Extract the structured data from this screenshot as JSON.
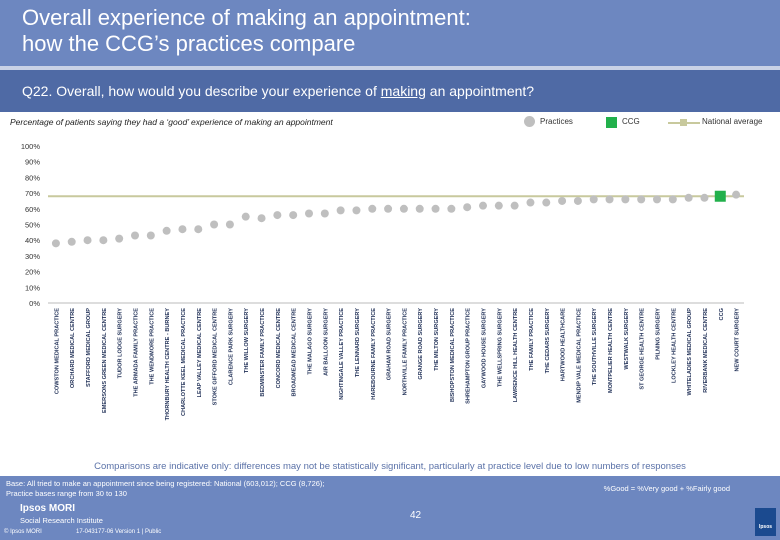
{
  "header": {
    "title_line1": "Overall experience of making an appointment:",
    "title_line2": "how the CCG’s practices compare"
  },
  "question": {
    "prefix": "Q22. Overall, how would you describe your experience of ",
    "underlined": "making",
    "suffix": " an appointment?"
  },
  "subtitle": "Percentage of patients saying they had a ‘good’ experience of making an appointment",
  "legend": {
    "practices": "Practices",
    "ccg": "CCG",
    "national": "National average"
  },
  "chart_data": {
    "type": "scatter",
    "title": "Overall experience of making an appointment",
    "ylabel": "",
    "xlabel": "",
    "ylim": [
      0,
      100
    ],
    "yticks": [
      "0%",
      "10%",
      "20%",
      "30%",
      "40%",
      "50%",
      "60%",
      "70%",
      "80%",
      "90%",
      "100%"
    ],
    "yticks_values": [
      0,
      10,
      20,
      30,
      40,
      50,
      60,
      70,
      80,
      90,
      100
    ],
    "categories": [
      "COWSTON MEDICAL PRACTICE",
      "ORCHARD MEDICAL CENTRE",
      "STAFFORD MEDICAL GROUP",
      "EMERSONS GREEN MEDICAL CENTRE",
      "TUDOR LODGE SURGERY",
      "THE ARMADA FAMILY PRACTICE",
      "THE WENDMORE PRACTICE",
      "THORNBURY HEALTH CENTRE - BURNEY",
      "CHARLOTTE KEEL MEDICAL PRACTICE",
      "LEAP VALLEY MEDICAL CENTRE",
      "STOKE GIFFORD MEDICAL CENTRE",
      "CLARENCE PARK SURGERY",
      "THE WILLOW SURGERY",
      "BEDMINSTER FAMILY PRACTICE",
      "CONCORD MEDICAL CENTRE",
      "BROADMEAD MEDICAL CENTRE",
      "THE MALAGO SURGERY",
      "AIR BALLOON SURGERY",
      "NIGHTINGALE VALLEY PRACTICE",
      "THE LENNARD SURGERY",
      "HAREBOURNE FAMILY PRACTICE",
      "GRAHAM ROAD SURGERY",
      "NORTHVILLE FAMILY PRACTICE",
      "GRANGE ROAD SURGERY",
      "THE MILTON SURGERY",
      "BISHOPSTON MEDICAL PRACTICE",
      "SHREHAMPTON GROUP PRACTICE",
      "GAYWOOD HOUSE SURGERY",
      "THE WELLSPRING SURGERY",
      "LAWRENCE HILL HEALTH CENTRE",
      "THE FAMILY PRACTICE",
      "THE CEDARS SURGERY",
      "HARTWOOD HEALTHCARE",
      "MENDIP VALE MEDICAL PRACTICE",
      "THE SOUTHVILLE SURGERY",
      "MONTPELIER HEALTH CENTRE",
      "WESTWALK SURGERY",
      "ST GEORGE HEALTH CENTRE",
      "PILNING SURGERY",
      "LOCKLEY HEALTH CENTRE",
      "WHITELADIES MEDICAL GROUP",
      "RIVERBANK MEDICAL CENTRE",
      "CCG",
      "NEW COURT SURGERY"
    ],
    "values": [
      38,
      39,
      40,
      40,
      41,
      43,
      43,
      46,
      47,
      47,
      50,
      50,
      55,
      54,
      56,
      56,
      57,
      57,
      59,
      59,
      60,
      60,
      60,
      60,
      60,
      60,
      61,
      62,
      62,
      62,
      64,
      64,
      65,
      65,
      66,
      66,
      66,
      66,
      66,
      66,
      67,
      67,
      68,
      69
    ],
    "ccg_index": 42,
    "national_average": 68,
    "colors": {
      "practice": "#bfbfbf",
      "ccg": "#22b04b",
      "national": "#c8c99d",
      "axis": "#333333",
      "label": "#1f2f56"
    }
  },
  "footnote": "Comparisons are indicative only: differences may not be statistically significant, particularly at practice level due to low numbers of responses",
  "footer": {
    "base_line1": "Base: All tried to make an appointment since being registered: National (603,012); CCG (8,726);",
    "base_line2": "Practice bases range from 30 to 130",
    "formula": "%Good = %Very good + %Fairly good",
    "brand": "Ipsos MORI",
    "brand_sub": "Social Research Institute",
    "copyright": "© Ipsos MORI",
    "version": "17-043177-06 Version 1 | Public",
    "page_number": "42",
    "logo_text": "Ipsos"
  }
}
